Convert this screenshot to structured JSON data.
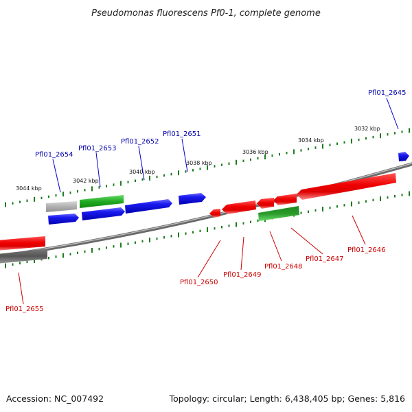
{
  "title": "Pseudomonas fluorescens Pf0-1, complete genome",
  "footer": {
    "accession": "Accession: NC_007492",
    "summary": "Topology: circular; Length: 6,438,405 bp; Genes: 5,816"
  },
  "colors": {
    "forward_gene": "#1010e0",
    "reverse_gene": "#ee0000",
    "forward_label": "#0000aa",
    "reverse_label": "#cc0000",
    "rna_green": "#22aa22",
    "pseudo_gray": "#b0b0b0",
    "backbone": "#8a8a8a",
    "ticks": "#1e7d1e"
  },
  "kbp_labels": [
    "3032 kbp",
    "3034 kbp",
    "3036 kbp",
    "3038 kbp",
    "3040 kbp",
    "3042 kbp",
    "3044 kbp"
  ],
  "forward_labels": [
    "Pfl01_2645",
    "Pfl01_2651",
    "Pfl01_2652",
    "Pfl01_2653",
    "Pfl01_2654"
  ],
  "reverse_labels": [
    "Pfl01_2646",
    "Pfl01_2647",
    "Pfl01_2648",
    "Pfl01_2649",
    "Pfl01_2650",
    "Pfl01_2655"
  ]
}
